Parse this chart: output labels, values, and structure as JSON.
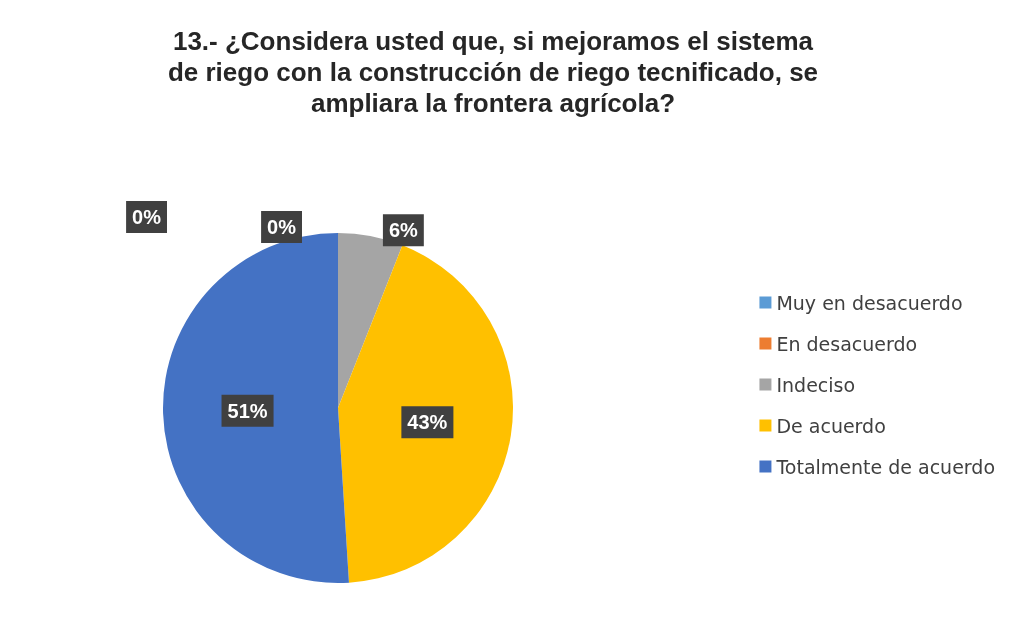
{
  "chart_data": {
    "type": "pie",
    "title": "13.- ¿Considera usted que, si mejoramos el sistema\nde riego con la construcción de riego tecnificado, se\nampliara la frontera agrícola?",
    "categories": [
      "Muy en desacuerdo",
      "En desacuerdo",
      "Indeciso",
      "De acuerdo",
      "Totalmente de acuerdo"
    ],
    "values": [
      0,
      0,
      6,
      43,
      51
    ],
    "value_labels": [
      "0%",
      "0%",
      "6%",
      "43%",
      "51%"
    ],
    "colors": [
      "#5b9bd5",
      "#ed7d31",
      "#a5a5a5",
      "#ffc000",
      "#4472c4"
    ],
    "legend": "right"
  }
}
